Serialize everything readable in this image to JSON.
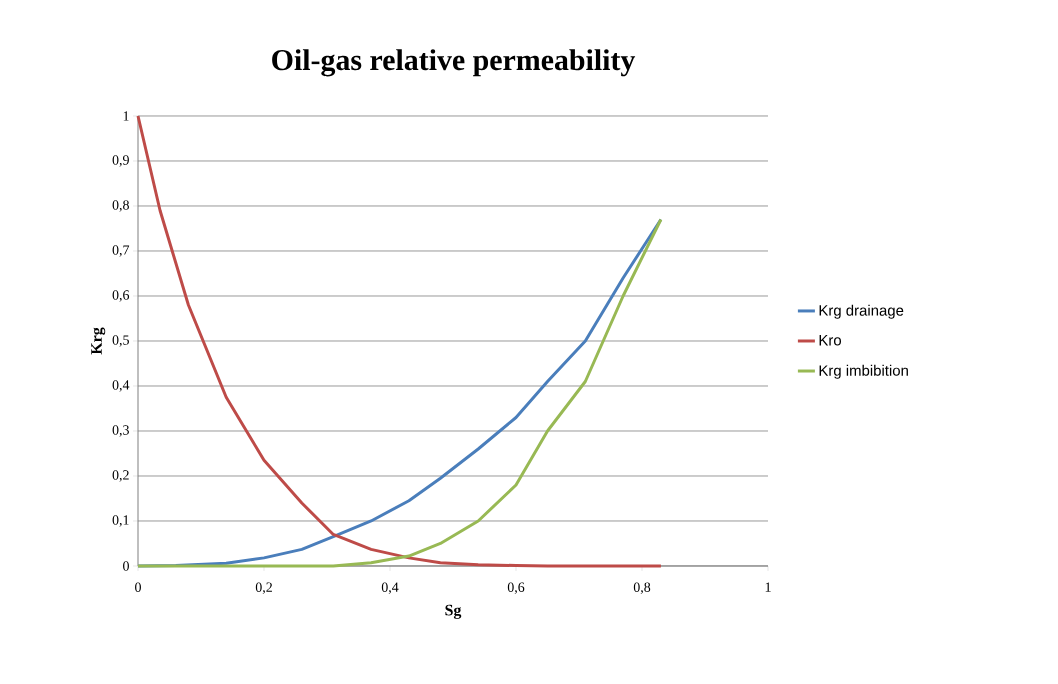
{
  "chart_data": {
    "type": "line",
    "title": "Oil-gas relative permeability",
    "xlabel": "Sg",
    "ylabel": "Krg",
    "xlim": [
      0,
      1
    ],
    "ylim": [
      0,
      1
    ],
    "xticks": [
      0,
      {
        "value": 0.2,
        "label": "0,2"
      },
      {
        "value": 0.4,
        "label": "0,4"
      },
      {
        "value": 0.6,
        "label": "0,6"
      },
      {
        "value": 0.8,
        "label": "0,8"
      },
      1
    ],
    "yticks": [
      0,
      {
        "value": 0.1,
        "label": "0,1"
      },
      {
        "value": 0.2,
        "label": "0,2"
      },
      {
        "value": 0.3,
        "label": "0,3"
      },
      {
        "value": 0.4,
        "label": "0,4"
      },
      {
        "value": 0.5,
        "label": "0,5"
      },
      {
        "value": 0.6,
        "label": "0,6"
      },
      {
        "value": 0.7,
        "label": "0,7"
      },
      {
        "value": 0.8,
        "label": "0,8"
      },
      {
        "value": 0.9,
        "label": "0,9"
      },
      1
    ],
    "grid": "y",
    "legend": "right",
    "marker": "none",
    "line_style": "solid",
    "series": [
      {
        "name": "Krg drainage",
        "color": "#4a7ebb",
        "x": [
          0,
          0.06,
          0.14,
          0.2,
          0.26,
          0.31,
          0.37,
          0.43,
          0.48,
          0.54,
          0.6,
          0.65,
          0.71,
          0.77,
          0.83
        ],
        "values": [
          0,
          0.001,
          0.006,
          0.018,
          0.037,
          0.065,
          0.1,
          0.145,
          0.195,
          0.26,
          0.33,
          0.41,
          0.5,
          0.64,
          0.77
        ]
      },
      {
        "name": "Kro",
        "color": "#be4b48",
        "x": [
          0,
          0.035,
          0.08,
          0.14,
          0.2,
          0.26,
          0.31,
          0.37,
          0.43,
          0.48,
          0.54,
          0.6,
          0.65,
          0.71,
          0.77,
          0.83
        ],
        "values": [
          1,
          0.79,
          0.58,
          0.375,
          0.235,
          0.14,
          0.07,
          0.037,
          0.018,
          0.007,
          0.003,
          0.001,
          0,
          0,
          0,
          0
        ]
      },
      {
        "name": "Krg imbibition",
        "color": "#98b954",
        "x": [
          0,
          0.06,
          0.14,
          0.2,
          0.26,
          0.31,
          0.37,
          0.43,
          0.48,
          0.54,
          0.6,
          0.65,
          0.71,
          0.77,
          0.83
        ],
        "values": [
          0,
          0,
          0,
          0,
          0,
          0,
          0.007,
          0.022,
          0.05,
          0.1,
          0.18,
          0.3,
          0.41,
          0.6,
          0.77
        ]
      }
    ]
  }
}
